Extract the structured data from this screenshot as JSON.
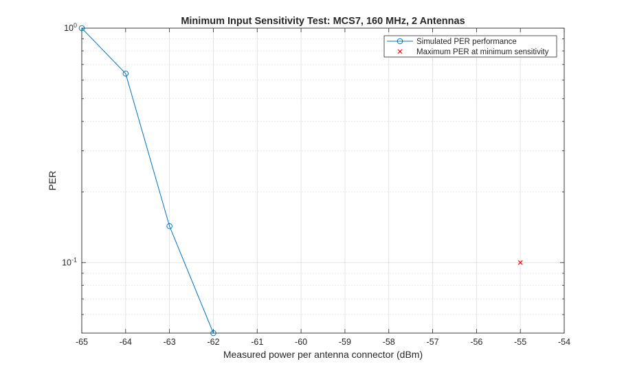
{
  "chart_data": {
    "type": "line",
    "title": "Minimum Input Sensitivity Test: MCS7, 160 MHz, 2 Antennas",
    "xlabel": "Measured power per antenna connector (dBm)",
    "ylabel": "PER",
    "xlim": [
      -65,
      -54
    ],
    "ylim": [
      0.05,
      1
    ],
    "yscale": "log",
    "xticks": [
      -65,
      -64,
      -63,
      -62,
      -61,
      -60,
      -59,
      -58,
      -57,
      -56,
      -55,
      -54
    ],
    "yticks": [
      {
        "value": 1,
        "base": "10",
        "exp": "0"
      },
      {
        "value": 0.1,
        "base": "10",
        "exp": "-1"
      }
    ],
    "grid": true,
    "legend_position": "top-right",
    "series": [
      {
        "name": "Simulated PER performance",
        "marker": "circle",
        "line": true,
        "color": "#0072BD",
        "x": [
          -65,
          -64,
          -63,
          -62
        ],
        "y": [
          1.0,
          0.64,
          0.143,
          0.05
        ]
      },
      {
        "name": "Maximum PER at minimum sensitivity",
        "marker": "x",
        "line": false,
        "color": "#FF0000",
        "x": [
          -55
        ],
        "y": [
          0.1
        ]
      }
    ]
  }
}
